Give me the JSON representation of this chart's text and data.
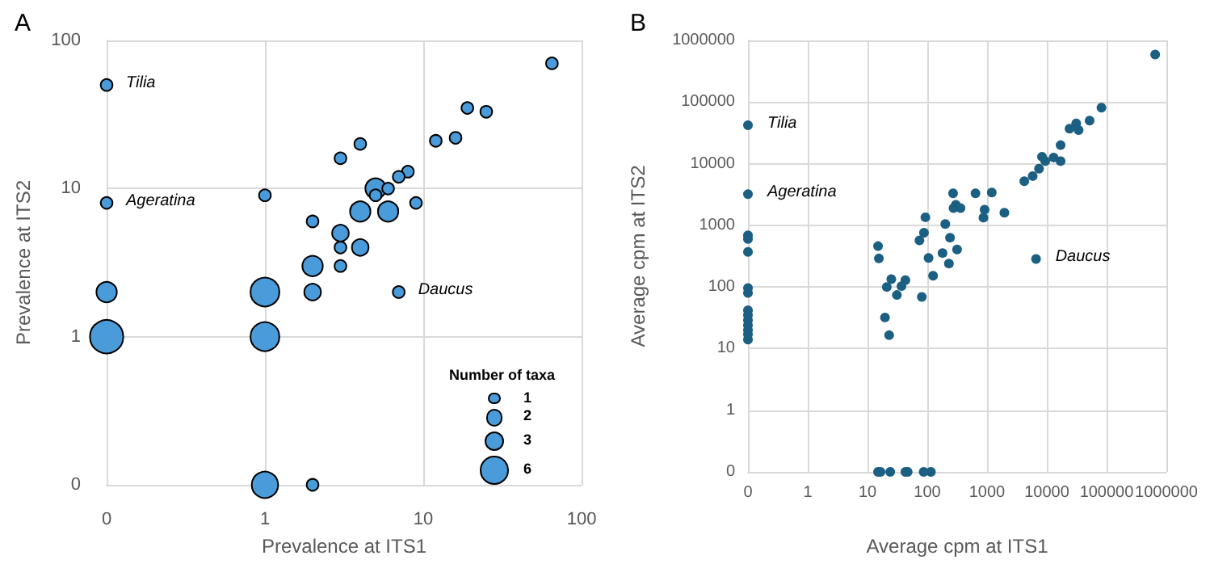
{
  "chart_data": [
    {
      "type": "bubble",
      "title": "A",
      "xlabel": "Prevalence at ITS1",
      "ylabel": "Prevalence at ITS2",
      "legend_title": "Number of taxa",
      "size_legend": [
        1,
        2,
        3,
        6
      ],
      "log": "xy",
      "grid": true,
      "marker": "circle",
      "xlim": [
        0.1,
        100
      ],
      "xticks": [
        {
          "value": 0.1,
          "label": "0"
        },
        1,
        10,
        100
      ],
      "ylim": [
        0.1,
        100
      ],
      "yticks": [
        {
          "value": 0.1,
          "label": "0"
        },
        1,
        10,
        100
      ],
      "annotations": [
        {
          "text": "Tilia",
          "x": 0.1,
          "y": 50
        },
        {
          "text": "Ageratina",
          "x": 0.1,
          "y": 8
        },
        {
          "text": "Daucus",
          "x": 7,
          "y": 2
        }
      ],
      "series": [
        {
          "color": "#4a9bd9",
          "x": [
            0.1,
            65,
            19,
            25,
            12,
            16,
            4,
            3,
            8,
            7,
            5,
            6,
            5,
            1,
            9,
            0.1,
            4,
            6,
            2,
            3,
            3,
            4,
            2,
            3,
            1,
            2,
            7,
            0.1,
            0.1,
            1,
            1,
            2
          ],
          "values": [
            50,
            70,
            35,
            33,
            21,
            22,
            20,
            16,
            13,
            12,
            10,
            10,
            9,
            9,
            8,
            8,
            7,
            7,
            6,
            5,
            4,
            4,
            3,
            3,
            2,
            2,
            2,
            2,
            1,
            1,
            0.1,
            0.1
          ],
          "sizes": [
            1,
            1,
            1,
            1,
            1,
            1,
            1,
            1,
            1,
            1,
            3,
            1,
            1,
            1,
            1,
            1,
            3,
            3,
            1,
            2,
            1,
            2,
            3,
            1,
            6,
            2,
            1,
            3,
            8,
            6,
            5,
            1
          ]
        }
      ]
    },
    {
      "type": "scatter",
      "title": "B",
      "xlabel": "Average cpm at ITS1",
      "ylabel": "Average cpm at ITS2",
      "log": "xy",
      "grid": true,
      "marker": "circle",
      "xlim": [
        0.1,
        1000000
      ],
      "xticks": [
        {
          "value": 0.1,
          "label": "0"
        },
        1,
        10,
        100,
        1000,
        10000,
        100000,
        1000000
      ],
      "ylim": [
        0.1,
        1000000
      ],
      "yticks": [
        {
          "value": 0.1,
          "label": "0"
        },
        1,
        10,
        100,
        1000,
        10000,
        100000,
        1000000
      ],
      "annotations": [
        {
          "text": "Tilia",
          "x": 0.1,
          "y": 42000
        },
        {
          "text": "Ageratina",
          "x": 0.1,
          "y": 3200
        },
        {
          "text": "Daucus",
          "x": 6600,
          "y": 285
        }
      ],
      "series": [
        {
          "color": "#1b5f82",
          "x": [
            650000,
            0.1,
            82000,
            52000,
            31000,
            24000,
            34000,
            17000,
            8300,
            9400,
            13000,
            17000,
            7400,
            5800,
            4200,
            0.1,
            270,
            640,
            1200,
            300,
            275,
            360,
            910,
            1950,
            93,
            870,
            200,
            0.1,
            0.1,
            0.1,
            88,
            74,
            240,
            15,
            15.5,
            105,
            180,
            315,
            230,
            6600,
            25,
            21,
            43,
            37,
            31,
            81,
            125,
            19.6,
            23,
            0.1,
            0.1,
            0.1,
            0.1,
            0.1,
            0.1,
            0.1,
            0.1,
            0.1,
            15,
            16.5,
            24,
            43,
            47,
            87,
            115
          ],
          "values": [
            590000,
            42000,
            81000,
            50000,
            45000,
            37000,
            35000,
            20000,
            13000,
            11000,
            12600,
            11000,
            8300,
            6300,
            5200,
            3200,
            3300,
            3300,
            3400,
            2150,
            1900,
            1900,
            1800,
            1600,
            1350,
            1330,
            1050,
            690,
            600,
            370,
            760,
            570,
            630,
            460,
            290,
            295,
            355,
            405,
            240,
            285,
            134,
            100,
            129,
            103,
            74,
            69,
            152,
            32,
            16.5,
            96,
            80,
            42,
            35,
            29,
            24,
            20,
            17,
            14,
            0.1,
            0.1,
            0.1,
            0.1,
            0.1,
            0.1,
            0.1
          ]
        }
      ]
    }
  ]
}
